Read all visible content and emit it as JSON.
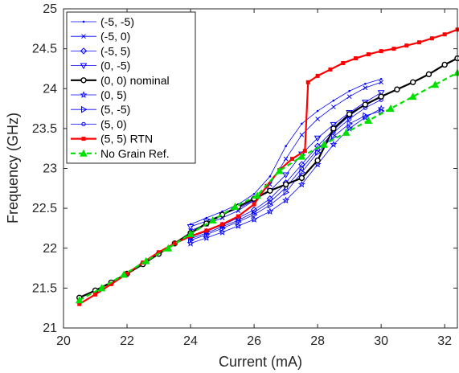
{
  "chart_data": {
    "type": "line",
    "title": "",
    "xlabel": "Current (mA)",
    "ylabel": "Frequency (GHz)",
    "xlim": [
      20,
      32.4
    ],
    "ylim": [
      21,
      25
    ],
    "xticks": [
      20,
      22,
      24,
      26,
      28,
      30,
      32
    ],
    "yticks": [
      21,
      21.5,
      22,
      22.5,
      23,
      23.5,
      24,
      24.5,
      25
    ],
    "grid": false,
    "legend_position": "top-left",
    "series": [
      {
        "name": "(-5, -5)",
        "color": "#0000ff",
        "marker": "dot",
        "style": "solid",
        "width": 0.8,
        "x": [
          24,
          24.5,
          25,
          25.5,
          26,
          26.5,
          27,
          27.5,
          28,
          28.5,
          29,
          29.5,
          30
        ],
        "y": [
          22.3,
          22.38,
          22.46,
          22.55,
          22.68,
          22.9,
          23.28,
          23.56,
          23.72,
          23.85,
          23.97,
          24.06,
          24.12
        ]
      },
      {
        "name": "(-5, 0)",
        "color": "#0000ff",
        "marker": "x",
        "style": "solid",
        "width": 0.8,
        "x": [
          24,
          24.5,
          25,
          25.5,
          26,
          26.5,
          27,
          27.5,
          28,
          28.5,
          29,
          29.5,
          30
        ],
        "y": [
          22.22,
          22.3,
          22.38,
          22.47,
          22.6,
          22.8,
          23.12,
          23.42,
          23.62,
          23.77,
          23.9,
          24.01,
          24.08
        ]
      },
      {
        "name": "(-5, 5)",
        "color": "#0000ff",
        "marker": "diamond",
        "style": "solid",
        "width": 0.8,
        "x": [
          24,
          24.5,
          25,
          25.5,
          26,
          26.5,
          27,
          27.5,
          28,
          28.5,
          29,
          29.5,
          30
        ],
        "y": [
          22.14,
          22.21,
          22.29,
          22.38,
          22.48,
          22.62,
          22.82,
          23.05,
          23.28,
          23.48,
          23.66,
          23.8,
          23.9
        ]
      },
      {
        "name": "(0, -5)",
        "color": "#0000ff",
        "marker": "triangle-down",
        "style": "solid",
        "width": 0.8,
        "x": [
          24,
          24.5,
          25,
          25.5,
          26,
          26.5,
          27,
          27.5,
          28,
          28.5,
          29,
          29.5,
          30
        ],
        "y": [
          22.27,
          22.34,
          22.42,
          22.5,
          22.6,
          22.72,
          22.92,
          23.18,
          23.38,
          23.55,
          23.7,
          23.83,
          23.95
        ]
      },
      {
        "name": "(0, 0) nominal",
        "color": "#000000",
        "marker": "circle",
        "style": "solid",
        "width": 2.2,
        "x": [
          20.5,
          21,
          21.5,
          22,
          22.5,
          23,
          23.5,
          24,
          24.5,
          25,
          25.5,
          26,
          26.5,
          27,
          27.5,
          28,
          28.5,
          29,
          29.5,
          30,
          30.5,
          31,
          31.5,
          32,
          32.4
        ],
        "y": [
          21.38,
          21.47,
          21.57,
          21.68,
          21.8,
          21.93,
          22.06,
          22.19,
          22.31,
          22.42,
          22.52,
          22.62,
          22.72,
          22.8,
          22.88,
          23.1,
          23.5,
          23.68,
          23.8,
          23.9,
          23.99,
          24.08,
          24.18,
          24.3,
          24.38
        ]
      },
      {
        "name": "(0, 5)",
        "color": "#0000ff",
        "marker": "star",
        "style": "solid",
        "width": 0.8,
        "x": [
          24,
          24.5,
          25,
          25.5,
          26,
          26.5,
          27,
          27.5,
          28,
          28.5,
          29,
          29.5,
          30
        ],
        "y": [
          22.06,
          22.13,
          22.2,
          22.28,
          22.36,
          22.46,
          22.6,
          22.8,
          23.05,
          23.3,
          23.5,
          23.64,
          23.75
        ]
      },
      {
        "name": "(5, -5)",
        "color": "#0000ff",
        "marker": "triangle-right",
        "style": "solid",
        "width": 0.8,
        "x": [
          24,
          24.5,
          25,
          25.5,
          26,
          26.5,
          27,
          27.5,
          28,
          28.5,
          29,
          29.5,
          30
        ],
        "y": [
          22.1,
          22.17,
          22.25,
          22.33,
          22.42,
          22.54,
          22.7,
          22.95,
          23.2,
          23.4,
          23.56,
          23.66,
          23.72
        ]
      },
      {
        "name": "(5, 0)",
        "color": "#0000ff",
        "marker": "circle-small",
        "style": "solid",
        "width": 0.8,
        "x": [
          24,
          24.5,
          25,
          25.5,
          26,
          26.5,
          27,
          27.5,
          28,
          28.5,
          29,
          29.5,
          30
        ],
        "y": [
          22.12,
          22.19,
          22.27,
          22.35,
          22.45,
          22.58,
          22.76,
          23.0,
          23.24,
          23.45,
          23.62,
          23.76,
          23.86
        ]
      },
      {
        "name": "(5, 5) RTN",
        "color": "#ff0000",
        "marker": "square",
        "style": "solid",
        "width": 2.2,
        "x": [
          20.5,
          21,
          21.5,
          22,
          22.5,
          23,
          23.5,
          24,
          24.5,
          25,
          25.5,
          26,
          26.4,
          26.8,
          27.2,
          27.6,
          27.7,
          28,
          28.4,
          28.8,
          29.2,
          29.6,
          30,
          30.4,
          30.8,
          31.2,
          31.6,
          32,
          32.4
        ],
        "y": [
          21.3,
          21.42,
          21.55,
          21.68,
          21.82,
          21.95,
          22.06,
          22.15,
          22.22,
          22.3,
          22.4,
          22.55,
          22.78,
          22.98,
          23.12,
          23.22,
          24.08,
          24.16,
          24.24,
          24.32,
          24.38,
          24.43,
          24.47,
          24.5,
          24.54,
          24.58,
          24.63,
          24.68,
          24.74
        ]
      },
      {
        "name": "No Grain Ref.",
        "color": "#00e000",
        "marker": "triangle-up",
        "style": "dashed",
        "width": 2.2,
        "x": [
          20.5,
          21.2,
          21.9,
          22.6,
          23.3,
          24,
          24.7,
          25.4,
          26.1,
          26.8,
          27.5,
          28.2,
          28.9,
          29.6,
          30.3,
          31,
          31.7,
          32.4
        ],
        "y": [
          21.35,
          21.5,
          21.67,
          21.84,
          22.0,
          22.18,
          22.35,
          22.52,
          22.66,
          22.97,
          23.15,
          23.3,
          23.45,
          23.6,
          23.75,
          23.9,
          24.05,
          24.2
        ]
      }
    ]
  }
}
